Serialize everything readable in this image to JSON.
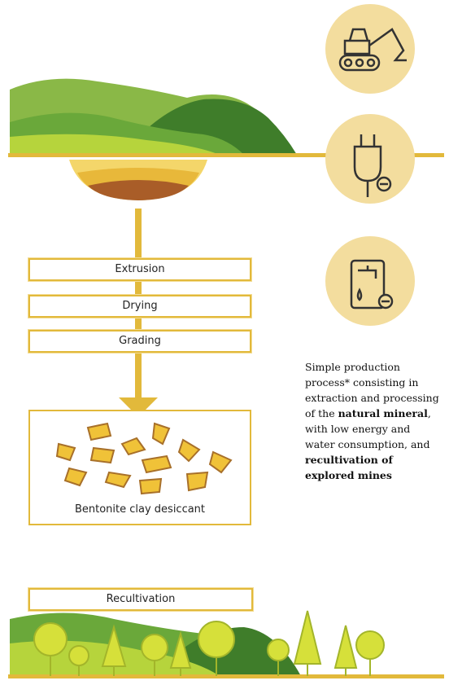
{
  "steps": [
    "Extrusion",
    "Drying",
    "Grading"
  ],
  "product_label": "Bentonite clay desiccant",
  "recultivation_label": "Recultivation",
  "description": {
    "segments": [
      {
        "text": "Simple production process* consisting in extraction and processing of the ",
        "bold": false
      },
      {
        "text": "natural mineral",
        "bold": true
      },
      {
        "text": ", with low energy and water consumption, and ",
        "bold": false
      },
      {
        "text": "recultivation of explored mines",
        "bold": true
      }
    ]
  }
}
